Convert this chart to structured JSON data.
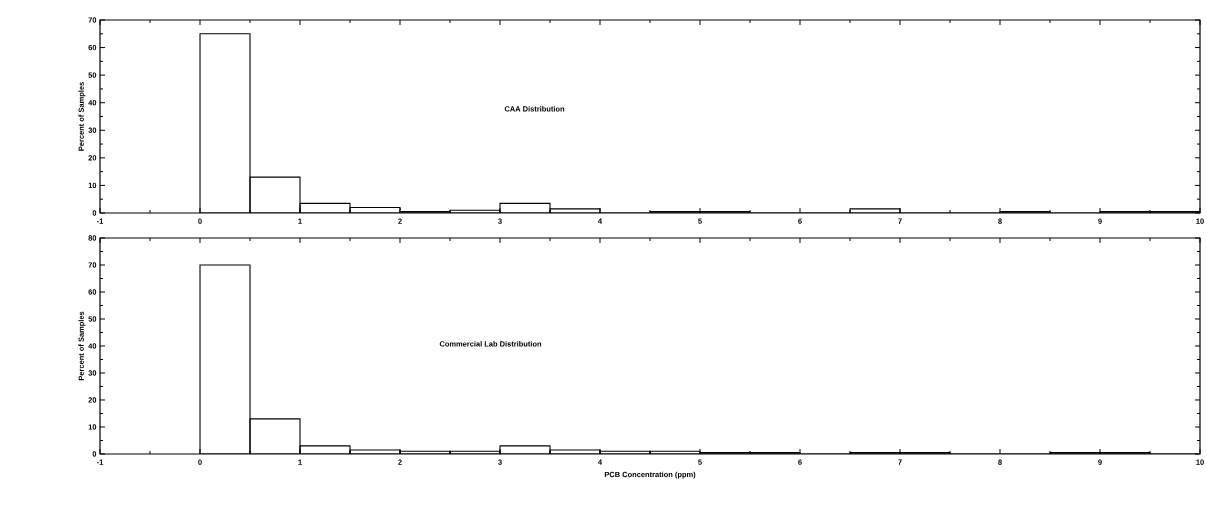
{
  "chart_data": [
    {
      "type": "histogram",
      "ylabel": "Percent of Samples",
      "annotations": [
        "CAA Distribution"
      ],
      "bins": [
        0,
        0.5,
        1,
        1.5,
        2,
        2.5,
        3,
        3.5,
        4,
        4.5,
        5,
        5.5,
        6,
        6.5,
        7,
        7.5,
        8,
        8.5,
        9,
        9.5,
        10
      ],
      "values": [
        65,
        13,
        3.5,
        2,
        0.5,
        1,
        3.5,
        1.5,
        0,
        0.5,
        0.5,
        0,
        0,
        1.5,
        0,
        0,
        0.5,
        0,
        0.5,
        0.5
      ],
      "color": "#000000",
      "xlim": [
        -1,
        10
      ],
      "xticks": [
        -1,
        0,
        1,
        2,
        3,
        4,
        5,
        6,
        7,
        8,
        9,
        10
      ],
      "ylim": [
        0,
        70
      ],
      "yticks": [
        0,
        10,
        20,
        30,
        40,
        50,
        60,
        70
      ]
    },
    {
      "type": "histogram",
      "ylabel": "Percent of Samples",
      "xlabel": "PCB Concentration (ppm)",
      "annotations": [
        "Commercial Lab Distribution"
      ],
      "bins": [
        0,
        0.5,
        1,
        1.5,
        2,
        2.5,
        3,
        3.5,
        4,
        4.5,
        5,
        5.5,
        6,
        6.5,
        7,
        7.5,
        8,
        8.5,
        9,
        9.5,
        10
      ],
      "values": [
        70,
        13,
        3,
        1.5,
        1,
        1,
        3,
        1.5,
        1,
        1,
        0.5,
        0.5,
        0,
        0.5,
        0.5,
        0,
        0,
        0.5,
        0.5,
        0
      ],
      "color": "#000000",
      "xlim": [
        -1,
        10
      ],
      "xticks": [
        -1,
        0,
        1,
        2,
        3,
        4,
        5,
        6,
        7,
        8,
        9,
        10
      ],
      "ylim": [
        0,
        80
      ],
      "yticks": [
        0,
        10,
        20,
        30,
        40,
        50,
        60,
        70,
        80
      ]
    }
  ]
}
